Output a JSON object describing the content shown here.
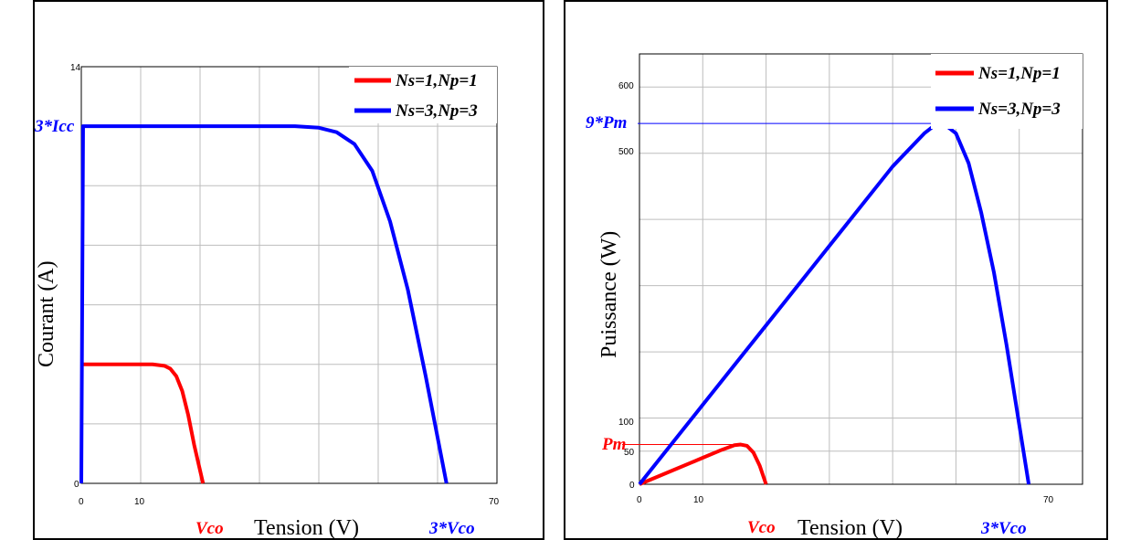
{
  "colors": {
    "red": "#ff0000",
    "blue": "#0000ff",
    "grid": "#bdbdbd"
  },
  "chart_data": [
    {
      "type": "line",
      "xlabel": "Tension (V)",
      "ylabel": "Courant (A)",
      "xlim": [
        0,
        70
      ],
      "ylim": [
        0,
        14
      ],
      "xticks": [
        "0",
        "10",
        "70"
      ],
      "yticks": [
        "0",
        "14"
      ],
      "grid": true,
      "legend_position": "top-right",
      "series": [
        {
          "name": "Ns=1,Np=1",
          "color": "#ff0000",
          "x": [
            0,
            5,
            10,
            12,
            14,
            15,
            16,
            17,
            18,
            19,
            20.5
          ],
          "y": [
            4.0,
            4.0,
            4.0,
            4.0,
            3.95,
            3.85,
            3.6,
            3.1,
            2.3,
            1.3,
            0
          ]
        },
        {
          "name": "Ns=3,Np=3",
          "color": "#0000ff",
          "x": [
            0,
            0.3,
            10,
            20,
            30,
            36,
            40,
            43,
            46,
            49,
            52,
            55,
            58,
            61.5
          ],
          "y": [
            0,
            12.0,
            12.0,
            12.0,
            12.0,
            12.0,
            11.95,
            11.8,
            11.4,
            10.5,
            8.8,
            6.5,
            3.6,
            0
          ]
        }
      ],
      "annotations": [
        {
          "text": "3*Icc",
          "color": "#0000ff"
        },
        {
          "text": "Vco",
          "color": "#ff0000"
        },
        {
          "text": "3*Vco",
          "color": "#0000ff"
        }
      ]
    },
    {
      "type": "line",
      "xlabel": "Tension (V)",
      "ylabel": "Puissance (W)",
      "xlim": [
        0,
        70
      ],
      "ylim": [
        0,
        650
      ],
      "xticks": [
        "0",
        "10",
        "70"
      ],
      "yticks": [
        "0",
        "50",
        "100",
        "500",
        "600"
      ],
      "grid": true,
      "legend_position": "top-right",
      "series": [
        {
          "name": "Ns=1,Np=1",
          "color": "#ff0000",
          "x": [
            0,
            5,
            10,
            13,
            15,
            16,
            17,
            18,
            19,
            20
          ],
          "y": [
            0,
            20,
            40,
            52,
            59,
            60,
            58,
            48,
            28,
            0
          ]
        },
        {
          "name": "Ns=3,Np=3",
          "color": "#0000ff",
          "x": [
            0,
            10,
            20,
            30,
            40,
            45,
            47,
            48,
            50,
            52,
            54,
            56,
            58,
            60,
            61.5
          ],
          "y": [
            0,
            120,
            240,
            360,
            480,
            530,
            545,
            545,
            530,
            485,
            410,
            320,
            210,
            90,
            0
          ]
        }
      ],
      "annotations": [
        {
          "text": "9*Pm",
          "color": "#0000ff"
        },
        {
          "text": "Pm",
          "color": "#ff0000"
        },
        {
          "text": "Vco",
          "color": "#ff0000"
        },
        {
          "text": "3*Vco",
          "color": "#0000ff"
        }
      ]
    }
  ]
}
